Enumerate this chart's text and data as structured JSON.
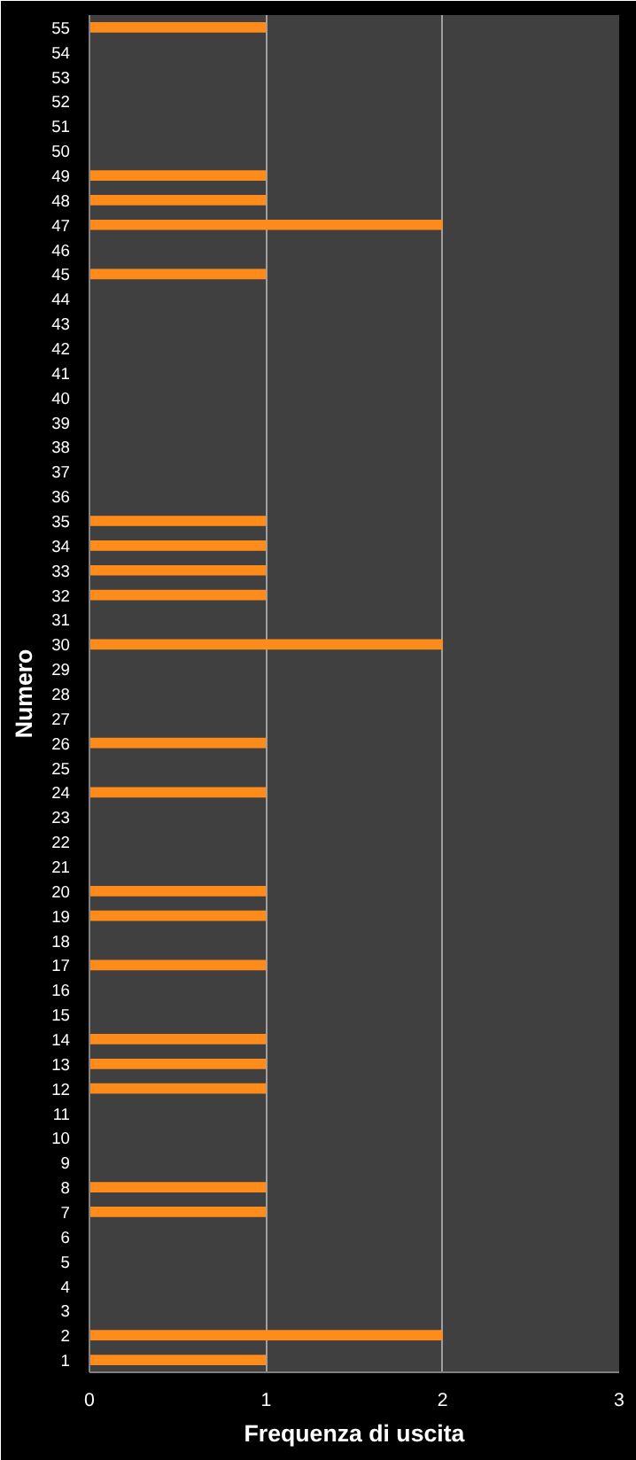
{
  "chart_data": {
    "type": "bar",
    "orientation": "horizontal",
    "xlabel": "Frequenza di uscita",
    "ylabel": "Numero",
    "categories": [
      "55",
      "54",
      "53",
      "52",
      "51",
      "50",
      "49",
      "48",
      "47",
      "46",
      "45",
      "44",
      "43",
      "42",
      "41",
      "40",
      "39",
      "38",
      "37",
      "36",
      "35",
      "34",
      "33",
      "32",
      "31",
      "30",
      "29",
      "28",
      "27",
      "26",
      "25",
      "24",
      "23",
      "22",
      "21",
      "20",
      "19",
      "18",
      "17",
      "16",
      "15",
      "14",
      "13",
      "12",
      "11",
      "10",
      "9",
      "8",
      "7",
      "6",
      "5",
      "4",
      "3",
      "2",
      "1"
    ],
    "values": [
      1,
      0,
      0,
      0,
      0,
      0,
      1,
      1,
      2,
      0,
      1,
      0,
      0,
      0,
      0,
      0,
      0,
      0,
      0,
      0,
      1,
      1,
      1,
      1,
      0,
      2,
      0,
      0,
      0,
      1,
      0,
      1,
      0,
      0,
      0,
      1,
      1,
      0,
      1,
      0,
      0,
      1,
      1,
      1,
      0,
      0,
      0,
      1,
      1,
      0,
      0,
      0,
      0,
      2,
      1
    ],
    "color": "#ff8c1a",
    "xlim": [
      0,
      3
    ],
    "xticks": [
      0,
      1,
      2,
      3
    ],
    "grid": "x"
  }
}
